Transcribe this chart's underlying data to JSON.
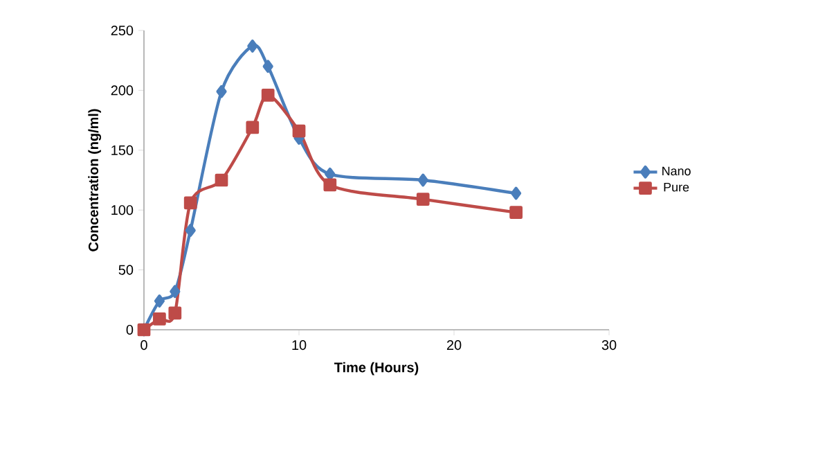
{
  "chart_data": {
    "type": "line",
    "xlabel": "Time (Hours)",
    "ylabel": "Concentration (ng/ml)",
    "xlim": [
      0,
      30
    ],
    "xticks": [
      0,
      10,
      20,
      30
    ],
    "ylim": [
      0,
      250
    ],
    "yticks": [
      0,
      50,
      100,
      150,
      200,
      250
    ],
    "grid": false,
    "legend": "right",
    "line_style": "solid",
    "series": [
      {
        "name": "Nano",
        "color": "#4a7ebb",
        "marker": "diamond",
        "x": [
          0,
          1,
          2,
          3,
          5,
          7,
          8,
          10,
          12,
          18,
          24
        ],
        "values": [
          0,
          24,
          32,
          83,
          199,
          237,
          220,
          160,
          130,
          125,
          114
        ]
      },
      {
        "name": "Pure",
        "color": "#be4b48",
        "marker": "square",
        "x": [
          0,
          1,
          2,
          3,
          5,
          7,
          8,
          10,
          12,
          18,
          24
        ],
        "values": [
          0,
          9,
          14,
          106,
          125,
          169,
          196,
          166,
          121,
          109,
          98
        ]
      }
    ]
  }
}
